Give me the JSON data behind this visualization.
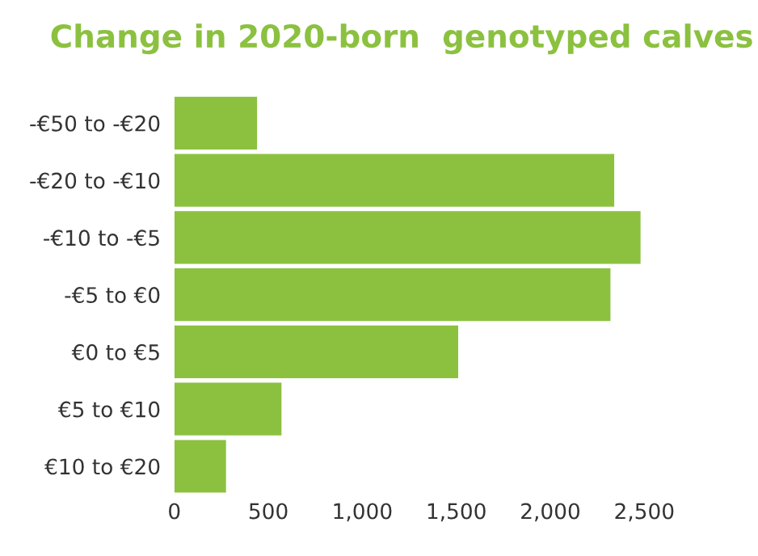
{
  "chart_data": {
    "type": "bar",
    "orientation": "horizontal",
    "title": "Change in 2020-born  genotyped calves",
    "categories": [
      "-€50 to -€20",
      "-€20 to -€10",
      "-€10 to -€5",
      "-€5 to €0",
      "€0 to €5",
      "€5 to €10",
      "€10 to €20"
    ],
    "values": [
      440,
      2340,
      2480,
      2320,
      1510,
      570,
      275
    ],
    "color": "#8bc13f",
    "xlim": [
      0,
      2500
    ],
    "xticks": [
      0,
      {
        "value": 500,
        "label": "500"
      },
      {
        "value": 1000,
        "label": "1,000"
      },
      {
        "value": 1500,
        "label": "1,500"
      },
      {
        "value": 2000,
        "label": "2,000"
      },
      {
        "value": 2500,
        "label": "2,500"
      }
    ],
    "grid": false,
    "legend": false
  }
}
